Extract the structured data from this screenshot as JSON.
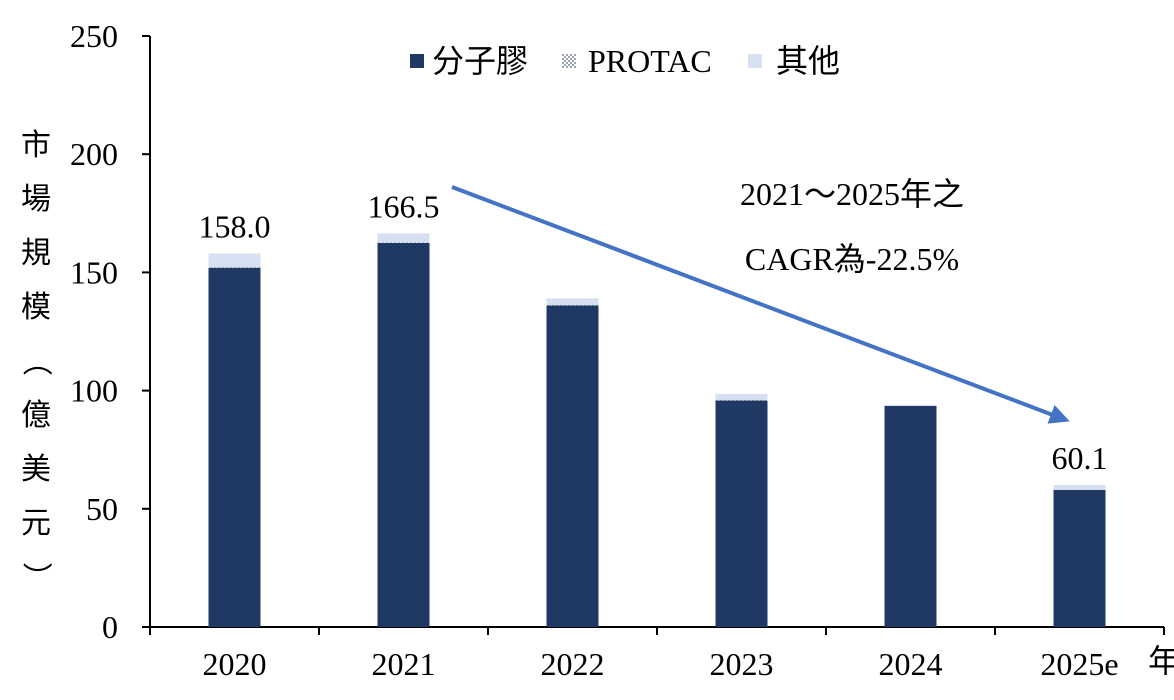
{
  "chart_data": {
    "type": "bar",
    "stacked": true,
    "categories": [
      "2020",
      "2021",
      "2022",
      "2023",
      "2024",
      "2025e"
    ],
    "xlabel": "年",
    "ylabel": "市場規模（億美元）",
    "ylim": [
      0,
      250
    ],
    "yticks": [
      0,
      50,
      100,
      150,
      200,
      250
    ],
    "series": [
      {
        "name": "分子膠",
        "values": [
          152.0,
          162.5,
          136.0,
          95.8,
          93.5,
          58.0
        ]
      },
      {
        "name": "PROTAC",
        "values": [
          0.2,
          0.2,
          0.2,
          0.2,
          0.1,
          0.1
        ]
      },
      {
        "name": "其他",
        "values": [
          5.8,
          3.8,
          2.8,
          2.6,
          0.4,
          2.0
        ]
      }
    ],
    "data_labels": [
      {
        "category": "2020",
        "text": "158.0"
      },
      {
        "category": "2021",
        "text": "166.5"
      },
      {
        "category": "2025e",
        "text": "60.1"
      }
    ],
    "annotation": {
      "line1": "2021～2025年之",
      "line2": "CAGR為-22.5%"
    },
    "legend_position": "top",
    "grid": false,
    "colors": {
      "分子膠": "#203864",
      "PROTAC": "#dfe4ee",
      "其他": "#d7e0f1",
      "arrow": "#4472c4"
    }
  }
}
